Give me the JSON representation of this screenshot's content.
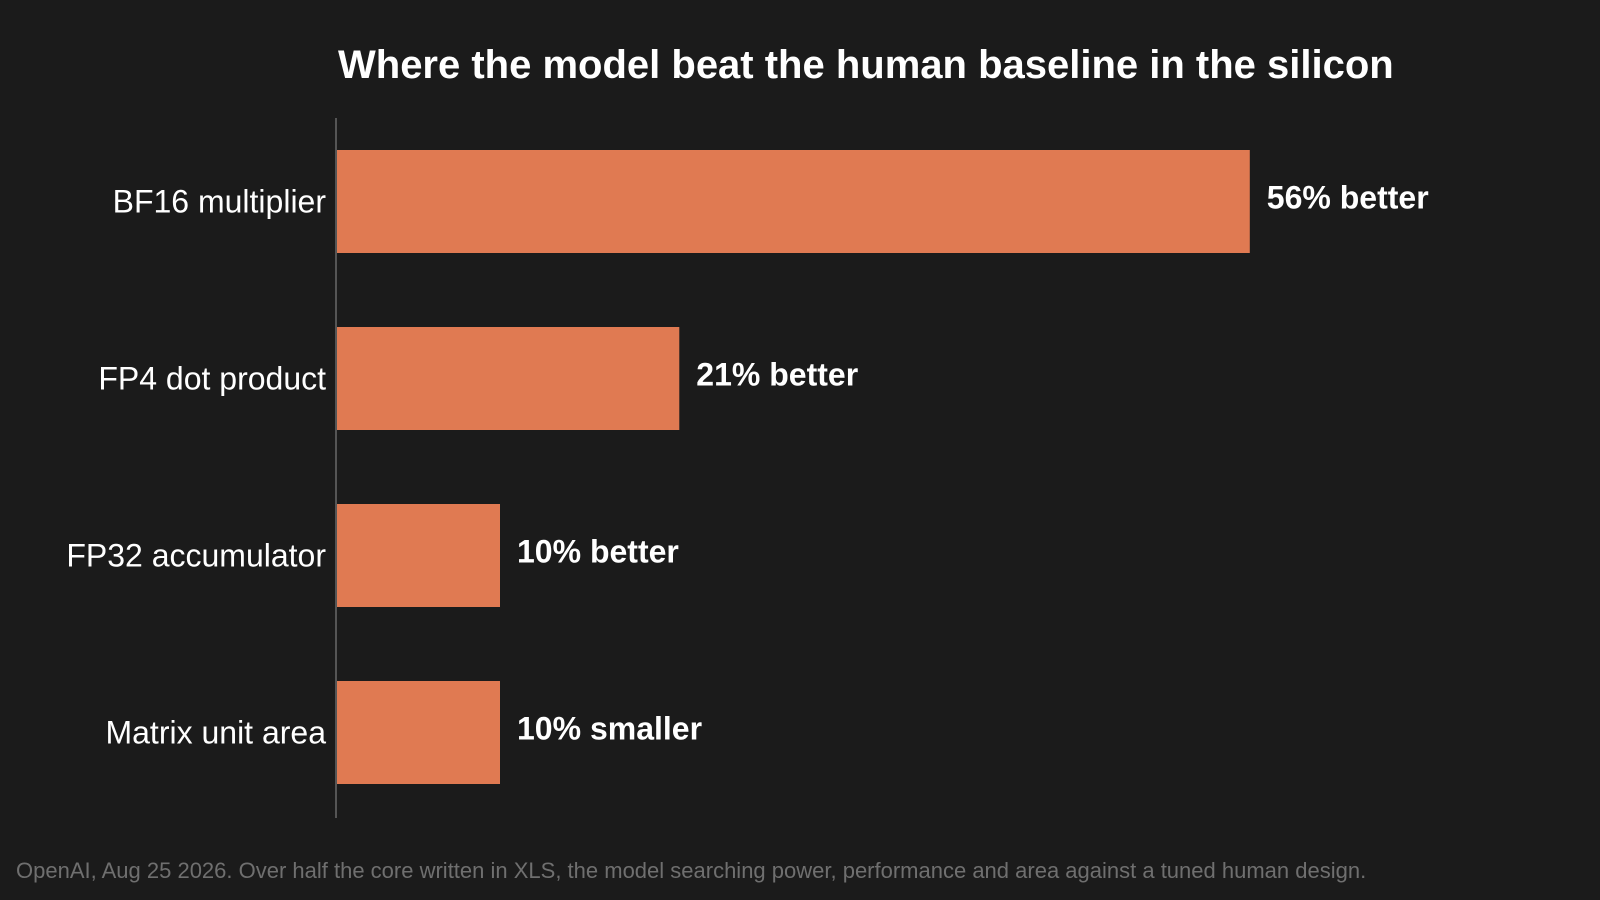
{
  "chart_data": {
    "type": "bar",
    "orientation": "horizontal",
    "title": "Where the model beat the human baseline in the silicon",
    "categories": [
      "BF16 multiplier",
      "FP4 dot product",
      "FP32 accumulator",
      "Matrix unit area"
    ],
    "values": [
      56,
      21,
      10,
      10
    ],
    "value_labels": [
      "56% better",
      "21% better",
      "10% better",
      "10% smaller"
    ],
    "unit": "%",
    "xlim": [
      0,
      60
    ],
    "grid": false,
    "legend": "none",
    "bar_color": "#e07a52",
    "axis_color": "#555555"
  },
  "footnote": "OpenAI, Aug 25 2026. Over half the core written in XLS, the model searching power, performance and area against a tuned human design.",
  "colors": {
    "background": "#1b1b1b",
    "text": "#ffffff",
    "footnote": "#6f6f6f"
  }
}
